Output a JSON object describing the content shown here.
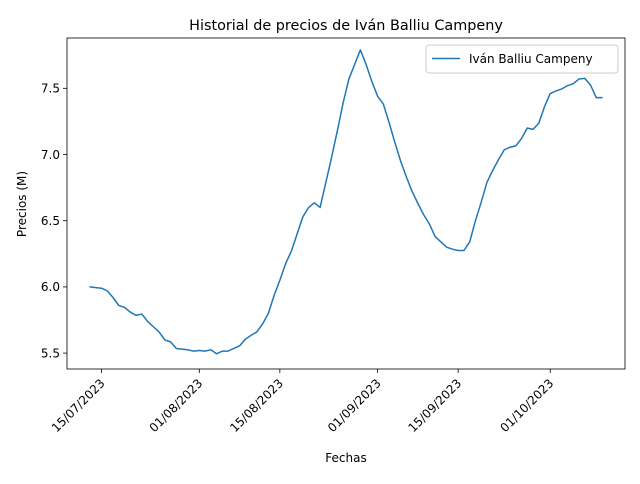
{
  "chart_data": {
    "type": "line",
    "title": "Historial de precios de Iván Balliu Campeny",
    "xlabel": "Fechas",
    "ylabel": "Precios (M)",
    "x_tick_labels": [
      "15/07/2023",
      "01/08/2023",
      "15/08/2023",
      "01/09/2023",
      "15/09/2023",
      "01/10/2023"
    ],
    "x_tick_dates": [
      "2023-07-15",
      "2023-08-01",
      "2023-08-15",
      "2023-09-01",
      "2023-09-15",
      "2023-10-01"
    ],
    "y_ticks": [
      5.5,
      6.0,
      6.5,
      7.0,
      7.5
    ],
    "y_tick_labels": [
      "5.5",
      "6.0",
      "6.5",
      "7.0",
      "7.5"
    ],
    "xlim": [
      "2023-07-09",
      "2023-10-14"
    ],
    "ylim": [
      5.38,
      7.88
    ],
    "grid": false,
    "legend_position": "top-right",
    "series": [
      {
        "name": "Iván Balliu Campeny",
        "color": "#1f77b4",
        "x": [
          "2023-07-13",
          "2023-07-14",
          "2023-07-15",
          "2023-07-16",
          "2023-07-17",
          "2023-07-18",
          "2023-07-19",
          "2023-07-20",
          "2023-07-21",
          "2023-07-22",
          "2023-07-23",
          "2023-07-24",
          "2023-07-25",
          "2023-07-26",
          "2023-07-27",
          "2023-07-28",
          "2023-07-29",
          "2023-07-30",
          "2023-07-31",
          "2023-08-01",
          "2023-08-02",
          "2023-08-03",
          "2023-08-04",
          "2023-08-05",
          "2023-08-06",
          "2023-08-07",
          "2023-08-08",
          "2023-08-09",
          "2023-08-10",
          "2023-08-11",
          "2023-08-12",
          "2023-08-13",
          "2023-08-14",
          "2023-08-15",
          "2023-08-16",
          "2023-08-17",
          "2023-08-18",
          "2023-08-19",
          "2023-08-20",
          "2023-08-21",
          "2023-08-22",
          "2023-08-23",
          "2023-08-24",
          "2023-08-25",
          "2023-08-26",
          "2023-08-27",
          "2023-08-28",
          "2023-08-29",
          "2023-08-30",
          "2023-08-31",
          "2023-09-01",
          "2023-09-02",
          "2023-09-03",
          "2023-09-04",
          "2023-09-05",
          "2023-09-06",
          "2023-09-07",
          "2023-09-08",
          "2023-09-09",
          "2023-09-10",
          "2023-09-11",
          "2023-09-12",
          "2023-09-13",
          "2023-09-14",
          "2023-09-15",
          "2023-09-16",
          "2023-09-17",
          "2023-09-18",
          "2023-09-19",
          "2023-09-20",
          "2023-09-21",
          "2023-09-22",
          "2023-09-23",
          "2023-09-24",
          "2023-09-25",
          "2023-09-26",
          "2023-09-27",
          "2023-09-28",
          "2023-09-29",
          "2023-09-30",
          "2023-10-01",
          "2023-10-02",
          "2023-10-03",
          "2023-10-04",
          "2023-10-05",
          "2023-10-06",
          "2023-10-07",
          "2023-10-08",
          "2023-10-09",
          "2023-10-10"
        ],
        "values": [
          6.0,
          5.995,
          5.99,
          5.97,
          5.92,
          5.86,
          5.845,
          5.81,
          5.785,
          5.795,
          5.74,
          5.7,
          5.66,
          5.6,
          5.585,
          5.535,
          5.53,
          5.525,
          5.515,
          5.52,
          5.515,
          5.525,
          5.495,
          5.515,
          5.515,
          5.535,
          5.555,
          5.605,
          5.635,
          5.66,
          5.72,
          5.8,
          5.935,
          6.05,
          6.175,
          6.27,
          6.4,
          6.53,
          6.6,
          6.635,
          6.6,
          6.79,
          6.98,
          7.18,
          7.39,
          7.57,
          7.68,
          7.79,
          7.68,
          7.55,
          7.44,
          7.38,
          7.24,
          7.09,
          6.95,
          6.83,
          6.72,
          6.63,
          6.545,
          6.475,
          6.38,
          6.34,
          6.3,
          6.285,
          6.275,
          6.275,
          6.34,
          6.5,
          6.64,
          6.79,
          6.88,
          6.96,
          7.035,
          7.055,
          7.065,
          7.12,
          7.2,
          7.19,
          7.235,
          7.36,
          7.46,
          7.48,
          7.495,
          7.52,
          7.535,
          7.57,
          7.575,
          7.525,
          7.43,
          7.43
        ]
      }
    ]
  }
}
